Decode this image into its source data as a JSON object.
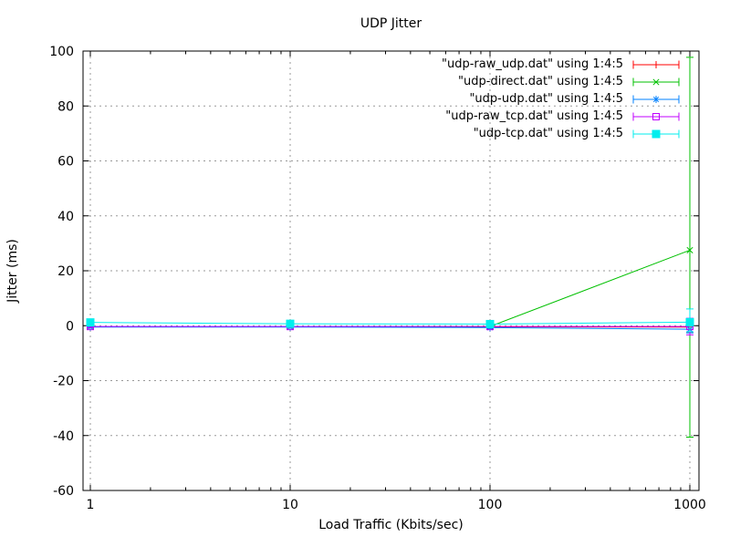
{
  "title": "UDP Jitter",
  "xlabel": "Load Traffic (Kbits/sec)",
  "ylabel": "Jitter (ms)",
  "colors": {
    "background": "#ffffff",
    "border": "#000000",
    "grid": "#999999",
    "text": "#000000"
  },
  "chart_data": {
    "type": "line",
    "subtype": "yerrorlines",
    "title": "UDP Jitter",
    "xlabel": "Load Traffic (Kbits/sec)",
    "ylabel": "Jitter (ms)",
    "xscale": "log",
    "xlim": [
      1,
      1000
    ],
    "ylim": [
      -60,
      100
    ],
    "xticks": [
      1,
      10,
      100,
      1000
    ],
    "xtick_labels": [
      "1",
      "10",
      "100",
      "1000"
    ],
    "yticks": [
      -60,
      -40,
      -20,
      0,
      20,
      40,
      60,
      80,
      100
    ],
    "ytick_labels": [
      "-60",
      "-40",
      "-20",
      "0",
      "20",
      "40",
      "60",
      "80",
      "100"
    ],
    "grid": true,
    "legend_position": "top-right-inside",
    "x": [
      1,
      10,
      100,
      1000
    ],
    "series": [
      {
        "name": "\"udp-raw_udp.dat\" using 1:4:5",
        "color": "#ff0000",
        "marker": "plus",
        "y": [
          -0.4,
          -0.4,
          -0.4,
          -0.5
        ],
        "yerr": [
          [
            0.2,
            0.2
          ],
          [
            0.2,
            0.2
          ],
          [
            0.3,
            0.3
          ],
          [
            1.8,
            1.8
          ]
        ]
      },
      {
        "name": "\"udp-direct.dat\" using 1:4:5",
        "color": "#00c000",
        "marker": "cross",
        "y": [
          -0.4,
          -0.4,
          -0.3,
          27.5
        ],
        "yerr": [
          [
            0.2,
            0.2
          ],
          [
            0.2,
            0.2
          ],
          [
            0.3,
            0.3
          ],
          [
            68.1,
            70.2
          ]
        ]
      },
      {
        "name": "\"udp-udp.dat\" using 1:4:5",
        "color": "#0080ff",
        "marker": "asterisk",
        "y": [
          -0.5,
          -0.5,
          -0.7,
          -1.3
        ],
        "yerr": [
          [
            0.2,
            0.2
          ],
          [
            0.2,
            0.2
          ],
          [
            0.3,
            0.3
          ],
          [
            1.3,
            1.3
          ]
        ]
      },
      {
        "name": "\"udp-raw_tcp.dat\" using 1:4:5",
        "color": "#c000ff",
        "marker": "square-open",
        "y": [
          -0.3,
          -0.3,
          -0.3,
          -0.3
        ],
        "yerr": [
          [
            0.4,
            0.4
          ],
          [
            0.4,
            0.4
          ],
          [
            0.4,
            0.4
          ],
          [
            3.0,
            3.0
          ]
        ]
      },
      {
        "name": "\"udp-tcp.dat\" using 1:4:5",
        "color": "#00eeee",
        "marker": "square-filled",
        "y": [
          1.2,
          0.7,
          0.6,
          1.3
        ],
        "yerr": [
          [
            0.5,
            0.5
          ],
          [
            0.5,
            0.5
          ],
          [
            0.5,
            0.5
          ],
          [
            3.5,
            4.8
          ]
        ]
      }
    ]
  }
}
